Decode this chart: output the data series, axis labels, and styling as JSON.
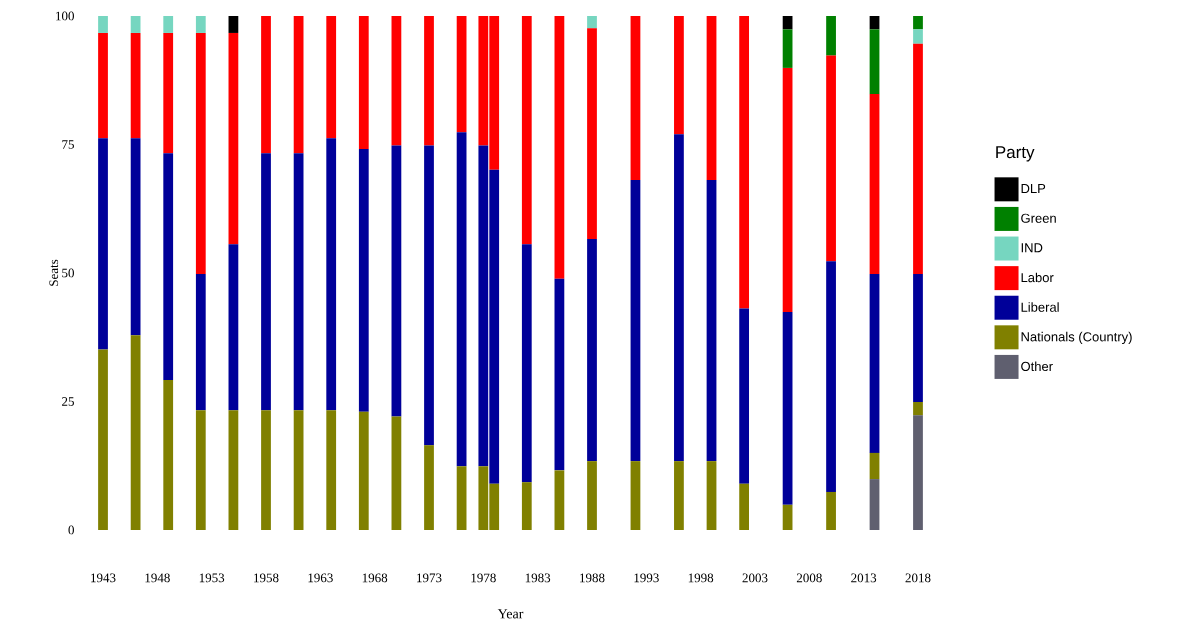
{
  "chart_data": {
    "type": "bar",
    "stacked": true,
    "xlabel": "Year",
    "ylabel": "Seats",
    "legend_title": "Party",
    "legend": "right",
    "x": [
      1943,
      1946,
      1949,
      1952,
      1955,
      1958,
      1961,
      1964,
      1967,
      1970,
      1973,
      1976,
      1978,
      1979,
      1982,
      1985,
      1988,
      1992,
      1996,
      1999,
      2002,
      2006,
      2010,
      2014,
      2018
    ],
    "xlim": [
      1943,
      2018
    ],
    "ylim": [
      0,
      100
    ],
    "xticks": [
      1943,
      1948,
      1953,
      1958,
      1963,
      1968,
      1973,
      1978,
      1983,
      1988,
      1993,
      1998,
      2003,
      2008,
      2013,
      2018
    ],
    "yticks": [
      0,
      25,
      50,
      75,
      100
    ],
    "series": [
      {
        "name": "Other",
        "color": "#5f5f6f",
        "values": [
          null,
          null,
          null,
          null,
          null,
          null,
          null,
          null,
          null,
          null,
          null,
          null,
          null,
          null,
          null,
          null,
          null,
          null,
          null,
          null,
          null,
          null,
          null,
          9.9,
          22.3
        ]
      },
      {
        "name": "Nationals (Country)",
        "color": "#808000",
        "values": [
          35.1,
          37.9,
          29.2,
          23.3,
          23.3,
          23.3,
          23.3,
          23.3,
          23.0,
          22.1,
          16.5,
          12.4,
          12.4,
          9.0,
          9.3,
          11.6,
          13.4,
          13.4,
          13.4,
          13.4,
          9.0,
          4.9,
          7.4,
          5.1,
          2.6
        ]
      },
      {
        "name": "Liberal",
        "color": "#000099",
        "values": [
          41.1,
          38.3,
          44.1,
          26.5,
          32.3,
          50.0,
          50.0,
          52.9,
          51.1,
          52.7,
          58.3,
          65.0,
          62.4,
          61.1,
          46.3,
          37.3,
          43.2,
          54.7,
          63.6,
          54.7,
          34.1,
          37.5,
          44.9,
          34.8,
          24.9
        ]
      },
      {
        "name": "Labor",
        "color": "#ff0000",
        "values": [
          20.5,
          20.5,
          23.4,
          46.9,
          41.1,
          26.7,
          26.7,
          23.8,
          25.9,
          25.2,
          25.2,
          22.6,
          25.2,
          29.9,
          44.4,
          51.1,
          41.0,
          31.9,
          23.0,
          31.9,
          56.9,
          47.5,
          40.0,
          35.0,
          44.8
        ]
      },
      {
        "name": "IND",
        "color": "#76d6c0",
        "values": [
          3.3,
          3.3,
          3.3,
          3.3,
          null,
          null,
          null,
          null,
          null,
          null,
          null,
          null,
          null,
          null,
          null,
          null,
          2.4,
          null,
          null,
          null,
          null,
          null,
          null,
          null,
          2.8
        ]
      },
      {
        "name": "Green",
        "color": "#008000",
        "values": [
          null,
          null,
          null,
          null,
          null,
          null,
          null,
          null,
          null,
          null,
          null,
          null,
          null,
          null,
          null,
          null,
          null,
          null,
          null,
          null,
          null,
          7.5,
          7.7,
          12.6,
          2.6
        ]
      },
      {
        "name": "DLP",
        "color": "#000000",
        "values": [
          null,
          null,
          null,
          null,
          3.3,
          null,
          null,
          null,
          null,
          null,
          null,
          null,
          null,
          null,
          null,
          null,
          null,
          null,
          null,
          null,
          null,
          2.6,
          null,
          2.6,
          null
        ]
      }
    ]
  }
}
